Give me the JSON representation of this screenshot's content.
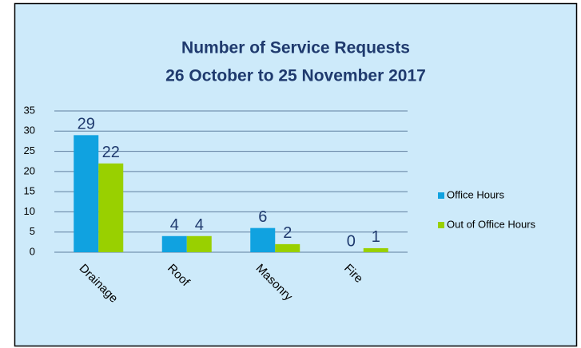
{
  "chart_data": {
    "type": "bar",
    "title": "Number of Service Requests",
    "subtitle": "26 October to 25 November 2017",
    "categories": [
      "Drainage",
      "Roof",
      "Masonry",
      "Fire"
    ],
    "series": [
      {
        "name": "Office Hours",
        "color": "#10a2e0",
        "values": [
          29,
          4,
          6,
          0
        ]
      },
      {
        "name": "Out of Office Hours",
        "color": "#99d000",
        "values": [
          22,
          4,
          2,
          1
        ]
      }
    ],
    "ylim": [
      0,
      35
    ],
    "yticks": [
      0,
      5,
      10,
      15,
      20,
      25,
      30,
      35
    ],
    "grid": true,
    "legend": "right"
  }
}
